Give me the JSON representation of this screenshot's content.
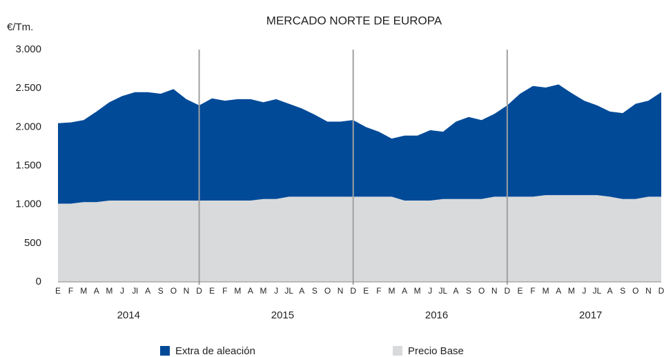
{
  "chart_data": {
    "type": "stacked_area",
    "title": "MERCADO NORTE DE EUROPA",
    "y_label": "€/Tm.",
    "categories": [
      "E",
      "F",
      "M",
      "A",
      "M",
      "J",
      "Jl",
      "A",
      "S",
      "O",
      "N",
      "D",
      "E",
      "F",
      "M",
      "A",
      "M",
      "J",
      "JL",
      "A",
      "S",
      "O",
      "N",
      "D",
      "E",
      "F",
      "M",
      "A",
      "M",
      "J",
      "JL",
      "A",
      "S",
      "O",
      "N",
      "D",
      "E",
      "F",
      "M",
      "A",
      "M",
      "J",
      "JL",
      "A",
      "S",
      "O",
      "N",
      "D"
    ],
    "year_labels": [
      "2014",
      "2015",
      "2016",
      "2017"
    ],
    "series": [
      {
        "name": "Precio Base",
        "color": "#d9dadc",
        "values": [
          1010,
          1010,
          1030,
          1030,
          1050,
          1050,
          1050,
          1050,
          1050,
          1050,
          1050,
          1050,
          1050,
          1050,
          1050,
          1050,
          1070,
          1070,
          1100,
          1100,
          1100,
          1100,
          1100,
          1100,
          1100,
          1100,
          1100,
          1050,
          1050,
          1050,
          1070,
          1070,
          1070,
          1070,
          1100,
          1100,
          1100,
          1100,
          1120,
          1120,
          1120,
          1120,
          1120,
          1100,
          1070,
          1070,
          1100,
          1100
        ]
      },
      {
        "name": "Extra de aleación",
        "color": "#004a98",
        "values": [
          1040,
          1050,
          1060,
          1170,
          1270,
          1350,
          1400,
          1400,
          1380,
          1440,
          1310,
          1230,
          1320,
          1290,
          1310,
          1310,
          1250,
          1290,
          1200,
          1140,
          1060,
          970,
          970,
          990,
          900,
          840,
          750,
          840,
          840,
          910,
          870,
          1000,
          1060,
          1020,
          1070,
          1180,
          1330,
          1430,
          1390,
          1430,
          1320,
          1220,
          1160,
          1100,
          1110,
          1230,
          1240,
          1350
        ]
      }
    ],
    "ylim": [
      0,
      3000
    ],
    "yticks": [
      0,
      500,
      {
        "value": 1000,
        "label": "1.000"
      },
      {
        "value": 1500,
        "label": "1.500"
      },
      {
        "value": 2000,
        "label": "2.000"
      },
      {
        "value": 2500,
        "label": "2.500"
      },
      {
        "value": 3000,
        "label": "3.000"
      }
    ],
    "grid": false,
    "legend_position": "bottom"
  }
}
